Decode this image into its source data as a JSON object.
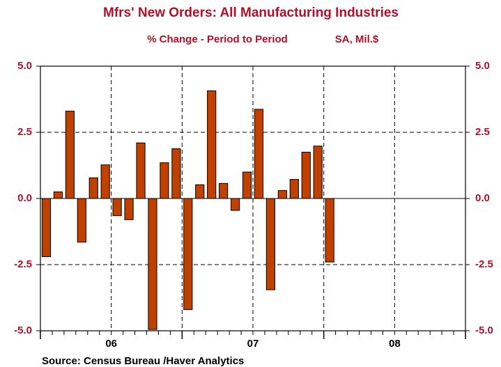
{
  "chart_data": {
    "type": "bar",
    "title": "Mfrs' New Orders: All Manufacturing Industries",
    "subtitle": "% Change - Period to Period",
    "units": "SA, Mil.$",
    "source": "Source:  Census Bureau /Haver Analytics",
    "years": [
      "06",
      "07",
      "08"
    ],
    "categories": [
      null,
      null,
      null,
      null,
      null,
      null,
      null,
      null,
      null,
      null,
      null,
      null,
      null,
      null,
      null,
      null,
      null,
      null,
      null,
      null,
      null,
      null,
      null,
      null,
      null
    ],
    "values": [
      -2.2,
      0.25,
      3.3,
      -1.65,
      0.78,
      1.27,
      -0.65,
      -0.8,
      2.1,
      -4.95,
      1.35,
      1.88,
      -4.2,
      0.52,
      4.07,
      0.57,
      -0.45,
      1.0,
      3.37,
      -3.45,
      0.3,
      0.72,
      1.75,
      1.98,
      -2.4
    ],
    "color": "#c04000",
    "ylim": [
      -5,
      5
    ],
    "yticks": [
      {
        "value": 5,
        "label": "5.0"
      },
      {
        "value": 2.5,
        "label": "2.5"
      },
      {
        "value": 0,
        "label": "0.0"
      },
      {
        "value": -2.5,
        "label": "-2.5"
      },
      {
        "value": -5,
        "label": "-5.0"
      }
    ],
    "grid": true
  }
}
